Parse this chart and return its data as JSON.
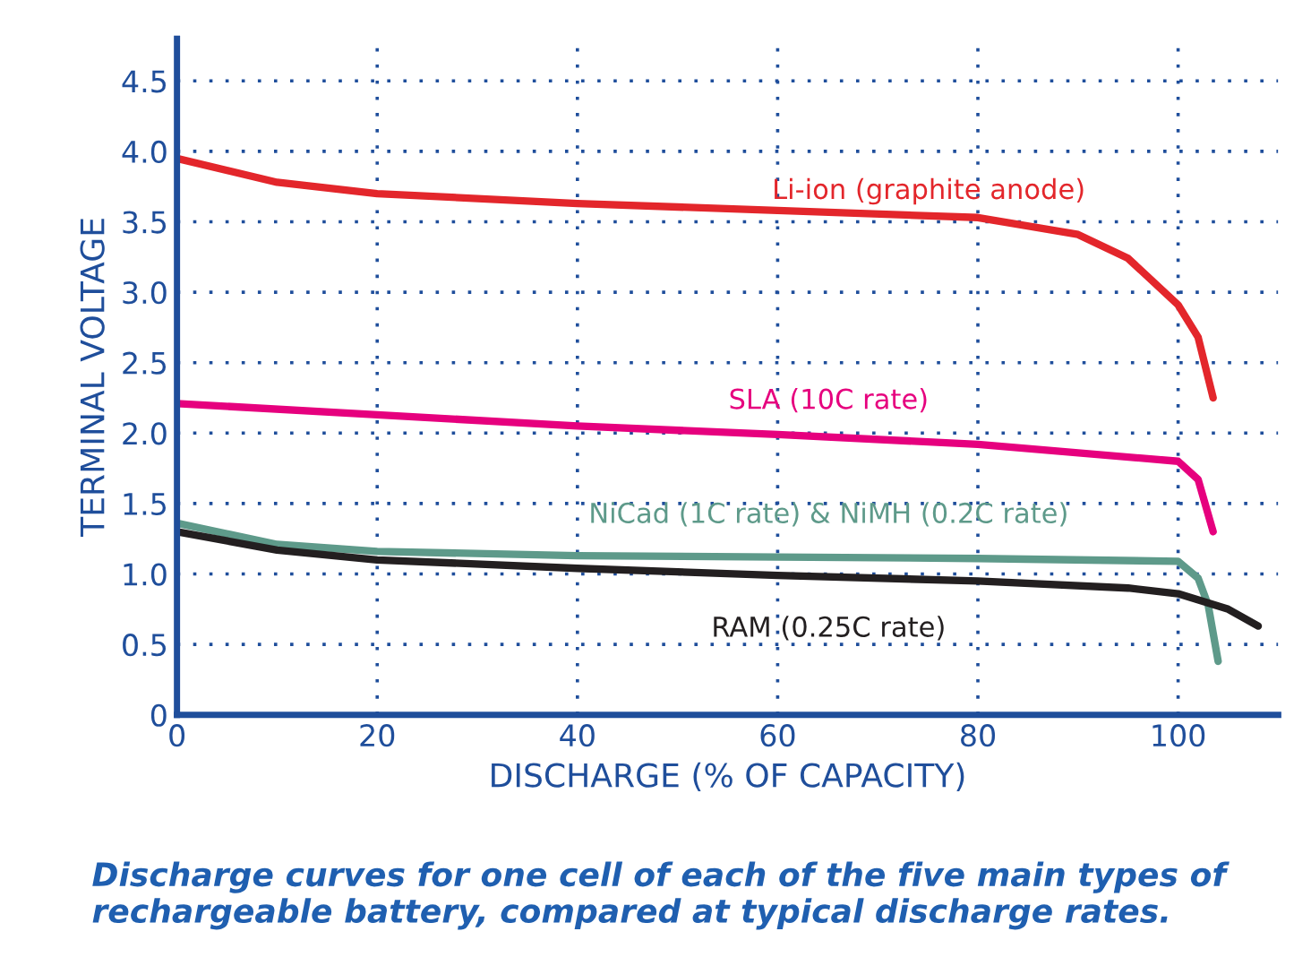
{
  "chart_data": {
    "type": "line",
    "xlabel": "DISCHARGE (% OF CAPACITY)",
    "ylabel": "TERMINAL VOLTAGE",
    "xlim": [
      0,
      110
    ],
    "ylim": [
      0,
      4.8
    ],
    "xticks": [
      0,
      20,
      40,
      60,
      80,
      100
    ],
    "yticks": [
      0,
      0.5,
      {
        "value": 1,
        "label": "1.0"
      },
      1.5,
      {
        "value": 2,
        "label": "2.0"
      },
      2.5,
      {
        "value": 3,
        "label": "3.0"
      },
      3.5,
      {
        "value": 4,
        "label": "4.0"
      },
      4.5
    ],
    "grid": true,
    "line_style": "solid",
    "marker": "none",
    "legend": false,
    "series": [
      {
        "name": "Li-ion (graphite anode)",
        "color": "#e3262b",
        "x": [
          0,
          10,
          20,
          40,
          60,
          80,
          90,
          95,
          100,
          102,
          103.5
        ],
        "values": [
          3.95,
          3.78,
          3.7,
          3.63,
          3.58,
          3.53,
          3.41,
          3.24,
          2.91,
          2.68,
          2.25
        ]
      },
      {
        "name": "SLA (10C rate)",
        "color": "#e6007e",
        "x": [
          0,
          20,
          40,
          60,
          80,
          100,
          102,
          103.5
        ],
        "values": [
          2.21,
          2.13,
          2.05,
          1.99,
          1.92,
          1.8,
          1.67,
          1.3
        ]
      },
      {
        "name": "NiCad (1C rate) & NiMH (0.2C rate)",
        "color": "#5e9a8a",
        "x": [
          0,
          10,
          20,
          40,
          60,
          80,
          100,
          102,
          103,
          104
        ],
        "values": [
          1.36,
          1.21,
          1.16,
          1.13,
          1.12,
          1.11,
          1.09,
          0.97,
          0.78,
          0.38
        ]
      },
      {
        "name": "RAM (0.25C rate)",
        "color": "#231f20",
        "x": [
          0,
          10,
          20,
          40,
          60,
          80,
          95,
          100,
          105,
          108
        ],
        "values": [
          1.3,
          1.17,
          1.1,
          1.04,
          0.99,
          0.95,
          0.9,
          0.86,
          0.75,
          0.63
        ]
      }
    ],
    "annotations": [
      "Discharge curves for one cell of each of the five main types of rechargeable battery, compared at typical discharge rates."
    ]
  }
}
